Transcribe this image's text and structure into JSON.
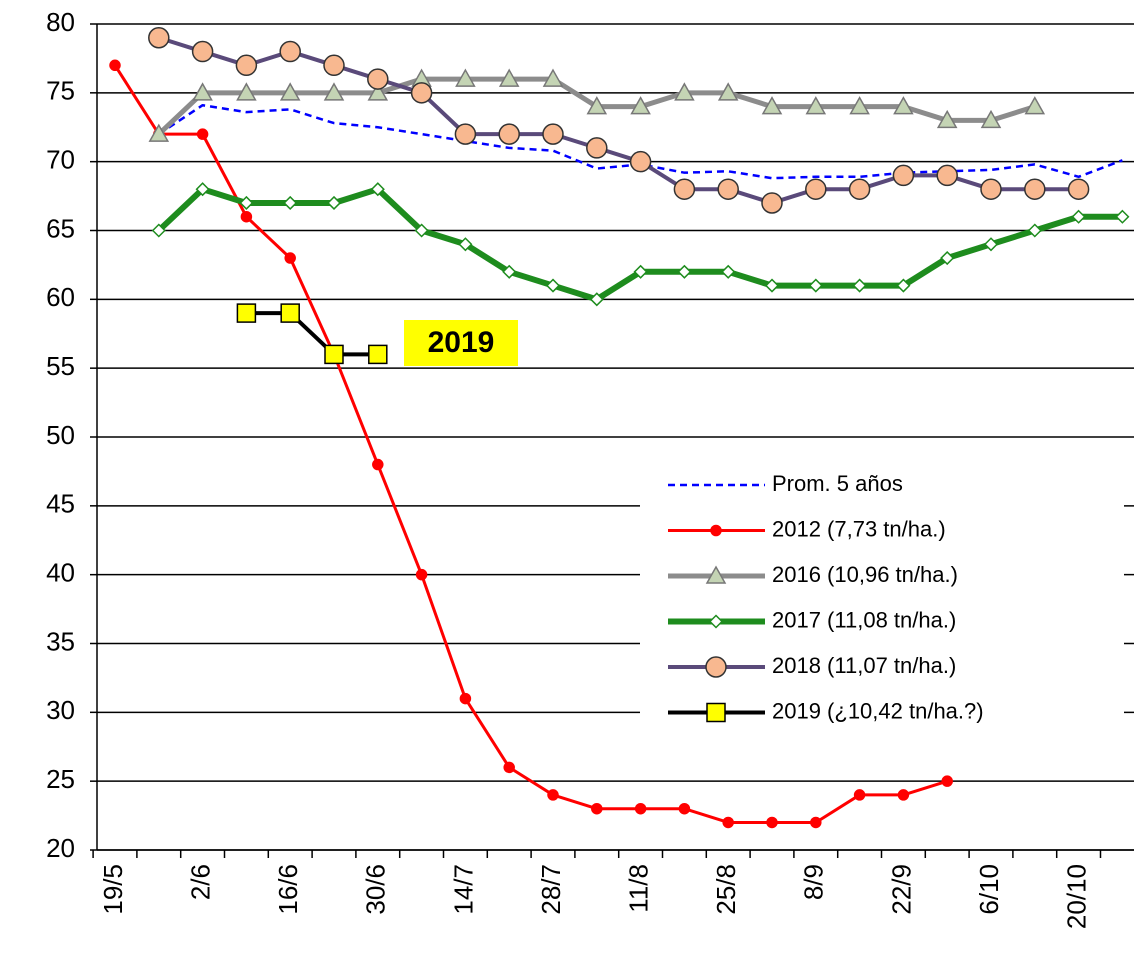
{
  "chart_data": {
    "type": "line",
    "categories": [
      "19/5",
      null,
      "2/6",
      null,
      "16/6",
      null,
      "30/6",
      null,
      "14/7",
      null,
      "28/7",
      null,
      "11/8",
      null,
      "25/8",
      null,
      "8/9",
      null,
      "22/9",
      null,
      "6/10",
      null,
      "20/10",
      null
    ],
    "series": [
      {
        "name": "Prom. 5 años",
        "color": "#0000ff",
        "dash": true,
        "marker": "none",
        "width": 2.5,
        "values": [
          null,
          72,
          74.1,
          73.6,
          73.8,
          72.8,
          72.5,
          72.0,
          71.5,
          71.0,
          70.8,
          69.5,
          69.8,
          69.2,
          69.3,
          68.8,
          68.9,
          68.9,
          69.2,
          69.3,
          69.4,
          69.8,
          68.9,
          70.1
        ]
      },
      {
        "name": "2012 (7,73 tn/ha.)",
        "color": "#ff0000",
        "marker": "dot",
        "width": 3,
        "values": [
          77,
          72,
          72,
          66,
          63,
          56,
          48,
          40,
          31,
          26,
          24,
          23,
          23,
          23,
          22,
          22,
          22,
          24,
          24,
          25,
          null,
          null,
          null,
          null
        ]
      },
      {
        "name": "2016 (10,96 tn/ha.)",
        "color": "#8c8c8c",
        "marker": "triangle",
        "markerFill": "#c4d4b4",
        "width": 5,
        "values": [
          null,
          72,
          75,
          75,
          75,
          75,
          75,
          76,
          76,
          76,
          76,
          74,
          74,
          75,
          75,
          74,
          74,
          74,
          74,
          73,
          73,
          74,
          null,
          null
        ]
      },
      {
        "name": "2017 (11,08 tn/ha.)",
        "color": "#1e8c1e",
        "marker": "diamond",
        "markerFill": "#ffffff",
        "width": 6,
        "values": [
          null,
          65,
          68,
          67,
          67,
          67,
          68,
          65,
          64,
          62,
          61,
          60,
          62,
          62,
          62,
          61,
          61,
          61,
          61,
          63,
          64,
          65,
          66,
          66
        ]
      },
      {
        "name": "2018 (11,07 tn/ha.)",
        "color": "#5a4a7a",
        "marker": "circle",
        "markerFill": "#f8b890",
        "width": 4,
        "values": [
          null,
          79,
          78,
          77,
          78,
          77,
          76,
          75,
          72,
          72,
          72,
          71,
          70,
          68,
          68,
          67,
          68,
          68,
          69,
          69,
          68,
          68,
          68,
          null
        ]
      },
      {
        "name": "2019 (¿10,42 tn/ha.?)",
        "color": "#000000",
        "marker": "square",
        "markerFill": "#ffff00",
        "width": 4,
        "values": [
          null,
          null,
          null,
          59,
          59,
          56,
          56,
          null,
          null,
          null,
          null,
          null,
          null,
          null,
          null,
          null,
          null,
          null,
          null,
          null,
          null,
          null,
          null,
          null
        ]
      }
    ],
    "annotation": "2019",
    "ylim": [
      20,
      80
    ],
    "yticks": [
      20,
      25,
      30,
      35,
      40,
      45,
      50,
      55,
      60,
      65,
      70,
      75,
      80
    ],
    "grid": true
  }
}
